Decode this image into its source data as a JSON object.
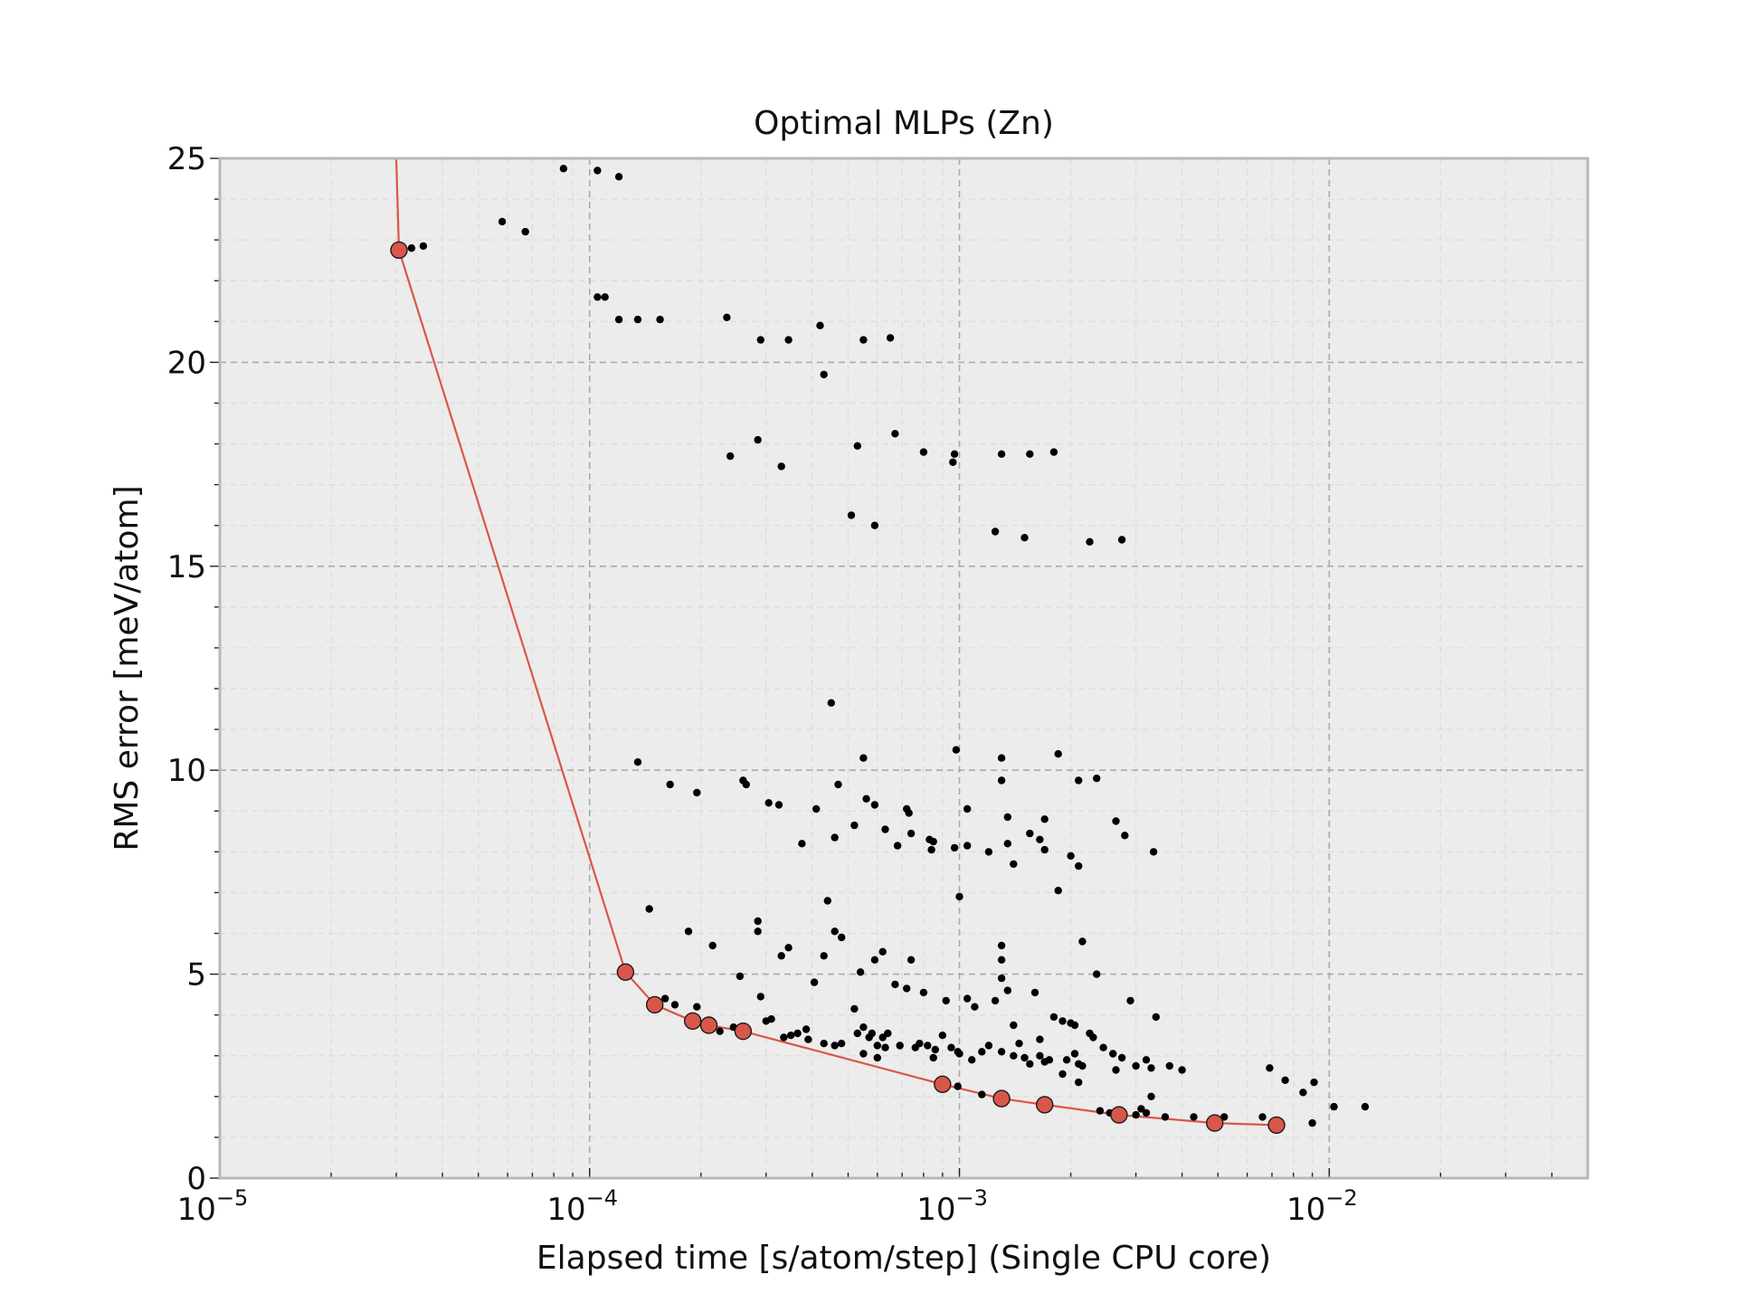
{
  "chart_data": {
    "type": "scatter",
    "title": "Optimal MLPs (Zn)",
    "xlabel": "Elapsed time [s/atom/step] (Single CPU core)",
    "ylabel": "RMS error [meV/atom]",
    "xscale": "log",
    "xlim": [
      1e-05,
      0.05
    ],
    "ylim": [
      0,
      25
    ],
    "x_ticks": [
      {
        "value": 1e-05,
        "base": "10",
        "exp": "−5"
      },
      {
        "value": 0.0001,
        "base": "10",
        "exp": "−4"
      },
      {
        "value": 0.001,
        "base": "10",
        "exp": "−3"
      },
      {
        "value": 0.01,
        "base": "10",
        "exp": "−2"
      }
    ],
    "y_ticks": [
      {
        "value": 0,
        "label": "0"
      },
      {
        "value": 5,
        "label": "5"
      },
      {
        "value": 10,
        "label": "10"
      },
      {
        "value": 15,
        "label": "15"
      },
      {
        "value": 20,
        "label": "20"
      },
      {
        "value": 25,
        "label": "25"
      }
    ],
    "grid": true,
    "colors": {
      "plot_background": "#ececec",
      "frame": "#b8b8b8",
      "grid_major": "#aaaaaa",
      "grid_minor": "#dedede",
      "points": "#000000",
      "pareto": "#d9574a"
    },
    "series": [
      {
        "kind": "points",
        "values": [
          [
            3.3e-05,
            22.8
          ],
          [
            3.55e-05,
            22.85
          ],
          [
            5.8e-05,
            23.45
          ],
          [
            6.7e-05,
            23.2
          ],
          [
            8.5e-05,
            24.75
          ],
          [
            0.000105,
            24.7
          ],
          [
            0.00012,
            24.55
          ],
          [
            0.000105,
            21.6
          ],
          [
            0.00011,
            21.6
          ],
          [
            0.00012,
            21.05
          ],
          [
            0.000135,
            21.05
          ],
          [
            0.000155,
            21.05
          ],
          [
            0.000235,
            21.1
          ],
          [
            0.00029,
            20.55
          ],
          [
            0.000345,
            20.55
          ],
          [
            0.00042,
            20.9
          ],
          [
            0.00055,
            20.55
          ],
          [
            0.00065,
            20.6
          ],
          [
            0.00043,
            19.7
          ],
          [
            0.00024,
            17.7
          ],
          [
            0.000285,
            18.1
          ],
          [
            0.00033,
            17.45
          ],
          [
            0.00053,
            17.95
          ],
          [
            0.00067,
            18.25
          ],
          [
            0.0008,
            17.8
          ],
          [
            0.00097,
            17.75
          ],
          [
            0.00096,
            17.55
          ],
          [
            0.0013,
            17.75
          ],
          [
            0.00155,
            17.75
          ],
          [
            0.0018,
            17.8
          ],
          [
            0.00051,
            16.25
          ],
          [
            0.00059,
            16.0
          ],
          [
            0.00125,
            15.85
          ],
          [
            0.0015,
            15.7
          ],
          [
            0.00225,
            15.6
          ],
          [
            0.00275,
            15.65
          ],
          [
            0.00045,
            11.65
          ],
          [
            0.000135,
            10.2
          ],
          [
            0.000165,
            9.65
          ],
          [
            0.000195,
            9.45
          ],
          [
            0.00026,
            9.75
          ],
          [
            0.000265,
            9.65
          ],
          [
            0.000305,
            9.2
          ],
          [
            0.000325,
            9.15
          ],
          [
            0.00041,
            9.05
          ],
          [
            0.00047,
            9.65
          ],
          [
            0.00055,
            10.3
          ],
          [
            0.00056,
            9.3
          ],
          [
            0.00059,
            9.15
          ],
          [
            0.00072,
            9.05
          ],
          [
            0.00073,
            8.95
          ],
          [
            0.00098,
            10.5
          ],
          [
            0.0013,
            10.3
          ],
          [
            0.0013,
            9.75
          ],
          [
            0.00105,
            9.05
          ],
          [
            0.00135,
            8.85
          ],
          [
            0.0017,
            8.8
          ],
          [
            0.00185,
            10.4
          ],
          [
            0.0021,
            9.75
          ],
          [
            0.00235,
            9.8
          ],
          [
            0.00265,
            8.75
          ],
          [
            0.000375,
            8.2
          ],
          [
            0.00046,
            8.35
          ],
          [
            0.00052,
            8.65
          ],
          [
            0.00063,
            8.55
          ],
          [
            0.00068,
            8.15
          ],
          [
            0.00074,
            8.45
          ],
          [
            0.00083,
            8.3
          ],
          [
            0.00085,
            8.25
          ],
          [
            0.00084,
            8.05
          ],
          [
            0.00097,
            8.1
          ],
          [
            0.00105,
            8.15
          ],
          [
            0.0012,
            8.0
          ],
          [
            0.00135,
            8.2
          ],
          [
            0.0014,
            7.7
          ],
          [
            0.00155,
            8.45
          ],
          [
            0.00165,
            8.3
          ],
          [
            0.0017,
            8.05
          ],
          [
            0.002,
            7.9
          ],
          [
            0.0021,
            7.65
          ],
          [
            0.0028,
            8.4
          ],
          [
            0.00335,
            8.0
          ],
          [
            0.00185,
            7.05
          ],
          [
            0.001,
            6.9
          ],
          [
            0.000145,
            6.6
          ],
          [
            0.000185,
            6.05
          ],
          [
            0.000215,
            5.7
          ],
          [
            0.000285,
            6.3
          ],
          [
            0.000285,
            6.05
          ],
          [
            0.000345,
            5.65
          ],
          [
            0.00033,
            5.45
          ],
          [
            0.00044,
            6.8
          ],
          [
            0.00046,
            6.05
          ],
          [
            0.00048,
            5.9
          ],
          [
            0.00043,
            5.45
          ],
          [
            0.00054,
            5.05
          ],
          [
            0.00059,
            5.35
          ],
          [
            0.00062,
            5.55
          ],
          [
            0.00074,
            5.35
          ],
          [
            0.0013,
            5.7
          ],
          [
            0.0013,
            5.35
          ],
          [
            0.00215,
            5.8
          ],
          [
            0.0013,
            4.9
          ],
          [
            0.00235,
            5.0
          ],
          [
            0.00016,
            4.4
          ],
          [
            0.00017,
            4.25
          ],
          [
            0.000195,
            4.2
          ],
          [
            0.000255,
            4.95
          ],
          [
            0.00029,
            4.45
          ],
          [
            0.0003,
            3.85
          ],
          [
            0.00031,
            3.9
          ],
          [
            0.000335,
            3.45
          ],
          [
            0.00035,
            3.5
          ],
          [
            0.000365,
            3.55
          ],
          [
            0.000385,
            3.65
          ],
          [
            0.000405,
            4.8
          ],
          [
            0.00043,
            3.3
          ],
          [
            0.00046,
            3.25
          ],
          [
            0.00048,
            3.3
          ],
          [
            0.00053,
            3.55
          ],
          [
            0.00055,
            3.7
          ],
          [
            0.00058,
            3.55
          ],
          [
            0.0006,
            3.25
          ],
          [
            0.00062,
            3.45
          ],
          [
            0.00064,
            3.55
          ],
          [
            0.00069,
            3.25
          ],
          [
            0.00067,
            4.75
          ],
          [
            0.00072,
            4.65
          ],
          [
            0.00076,
            3.2
          ],
          [
            0.00078,
            3.3
          ],
          [
            0.00082,
            3.25
          ],
          [
            0.00086,
            3.15
          ],
          [
            0.0009,
            3.5
          ],
          [
            0.00095,
            3.2
          ],
          [
            0.00099,
            3.1
          ],
          [
            0.001,
            3.05
          ],
          [
            0.00105,
            4.4
          ],
          [
            0.0011,
            4.2
          ],
          [
            0.00115,
            3.1
          ],
          [
            0.0012,
            3.25
          ],
          [
            0.00125,
            4.35
          ],
          [
            0.0013,
            3.1
          ],
          [
            0.00135,
            4.6
          ],
          [
            0.0014,
            3.0
          ],
          [
            0.00145,
            3.3
          ],
          [
            0.0015,
            2.95
          ],
          [
            0.00155,
            2.8
          ],
          [
            0.0016,
            4.55
          ],
          [
            0.00165,
            3.0
          ],
          [
            0.0017,
            2.85
          ],
          [
            0.00175,
            2.9
          ],
          [
            0.0018,
            3.95
          ],
          [
            0.0019,
            3.85
          ],
          [
            0.00195,
            2.9
          ],
          [
            0.002,
            3.8
          ],
          [
            0.00205,
            3.75
          ],
          [
            0.0021,
            2.8
          ],
          [
            0.00215,
            2.75
          ],
          [
            0.00225,
            3.55
          ],
          [
            0.0023,
            3.45
          ],
          [
            0.00245,
            3.2
          ],
          [
            0.0026,
            3.05
          ],
          [
            0.00265,
            2.65
          ],
          [
            0.00275,
            2.95
          ],
          [
            0.0029,
            4.35
          ],
          [
            0.003,
            2.75
          ],
          [
            0.0032,
            2.9
          ],
          [
            0.0033,
            2.7
          ],
          [
            0.0034,
            3.95
          ],
          [
            0.0037,
            2.75
          ],
          [
            0.004,
            2.65
          ],
          [
            0.0033,
            2.0
          ],
          [
            0.0021,
            2.35
          ],
          [
            0.0024,
            1.65
          ],
          [
            0.003,
            1.55
          ],
          [
            0.0032,
            1.6
          ],
          [
            0.0036,
            1.5
          ],
          [
            0.0043,
            1.5
          ],
          [
            0.0052,
            1.5
          ],
          [
            0.0069,
            2.7
          ],
          [
            0.0076,
            2.4
          ],
          [
            0.0085,
            2.1
          ],
          [
            0.0091,
            2.35
          ],
          [
            0.0066,
            1.5
          ],
          [
            0.009,
            1.35
          ],
          [
            0.0103,
            1.75
          ],
          [
            0.0125,
            1.75
          ],
          [
            0.00255,
            1.6
          ],
          [
            0.0031,
            1.7
          ],
          [
            0.00175,
            1.8
          ],
          [
            0.00115,
            2.05
          ],
          [
            0.00099,
            2.25
          ],
          [
            0.00052,
            4.15
          ],
          [
            0.00055,
            3.05
          ],
          [
            0.0006,
            2.95
          ],
          [
            0.00085,
            2.95
          ],
          [
            0.00108,
            2.9
          ],
          [
            0.0019,
            2.55
          ],
          [
            0.00205,
            3.05
          ],
          [
            0.00165,
            3.4
          ],
          [
            0.0014,
            3.75
          ],
          [
            0.00092,
            4.35
          ],
          [
            0.0008,
            4.55
          ],
          [
            0.00063,
            3.2
          ],
          [
            0.00057,
            3.45
          ],
          [
            0.000245,
            3.7
          ],
          [
            0.000225,
            3.6
          ],
          [
            0.00039,
            3.4
          ]
        ]
      },
      {
        "kind": "pareto",
        "values": [
          [
            3e-05,
            25.0
          ],
          [
            3.05e-05,
            22.75
          ],
          [
            0.000125,
            5.05
          ],
          [
            0.00015,
            4.25
          ],
          [
            0.00019,
            3.85
          ],
          [
            0.00021,
            3.75
          ],
          [
            0.00026,
            3.6
          ],
          [
            0.0009,
            2.3
          ],
          [
            0.0013,
            1.95
          ],
          [
            0.0017,
            1.8
          ],
          [
            0.0027,
            1.55
          ],
          [
            0.0049,
            1.35
          ],
          [
            0.0072,
            1.3
          ]
        ],
        "markers": [
          [
            3.05e-05,
            22.75
          ],
          [
            0.000125,
            5.05
          ],
          [
            0.00015,
            4.25
          ],
          [
            0.00019,
            3.85
          ],
          [
            0.00021,
            3.75
          ],
          [
            0.00026,
            3.6
          ],
          [
            0.0009,
            2.3
          ],
          [
            0.0013,
            1.95
          ],
          [
            0.0017,
            1.8
          ],
          [
            0.0027,
            1.55
          ],
          [
            0.0049,
            1.35
          ],
          [
            0.0072,
            1.3
          ]
        ]
      }
    ]
  }
}
